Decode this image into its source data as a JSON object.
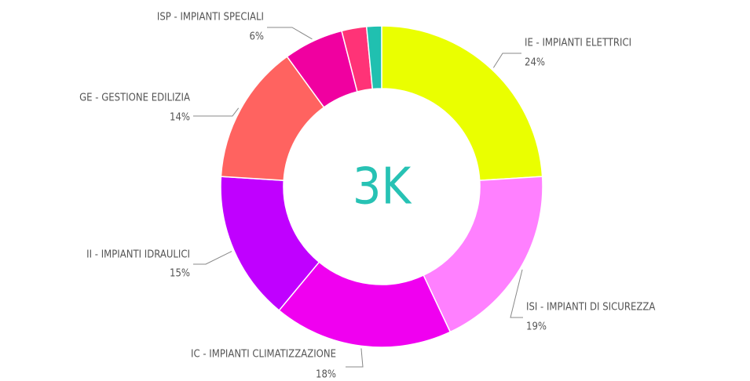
{
  "chart_data": {
    "type": "donut",
    "center_label": "3K",
    "categories": [
      "IE - IMPIANTI ELETTRICI",
      "ISI - IMPIANTI DI SICUREZZA",
      "IC - IMPIANTI CLIMATIZZAZIONE",
      "II - IMPIANTI IDRAULICI",
      "GE - GESTIONE EDILIZIA",
      "ISP - IMPIANTI SPECIALI",
      null,
      null
    ],
    "values": [
      24,
      19,
      18,
      15,
      14,
      6,
      2.5,
      1.5
    ],
    "value_labels": [
      "24%",
      "19%",
      "18%",
      "15%",
      "14%",
      "6%",
      null,
      null
    ],
    "colors": [
      "#eaff00",
      "#ff80ff",
      "#f000f0",
      "#c000ff",
      "#ff6360",
      "#f000a0",
      "#ff3377",
      "#20c0b0"
    ]
  }
}
